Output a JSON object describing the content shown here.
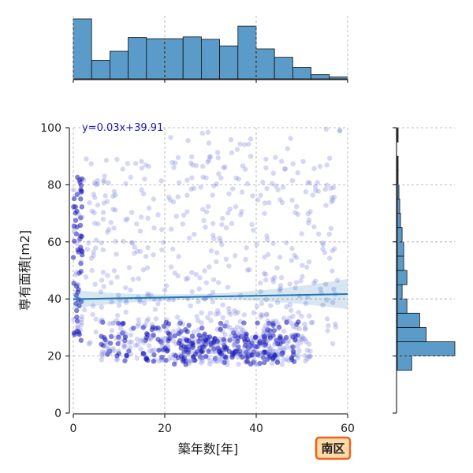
{
  "chart_data": {
    "type": "scatter",
    "title": "",
    "xlabel": "築年数[年]",
    "ylabel": "専有面積[m2]",
    "xlim": [
      0,
      60
    ],
    "ylim": [
      0,
      100
    ],
    "xticks": [
      0,
      20,
      40,
      60
    ],
    "yticks": [
      0,
      20,
      40,
      60,
      80,
      100
    ],
    "grid": true,
    "regression": {
      "label": "y=0.03x+39.91",
      "slope": 0.03,
      "intercept": 39.91
    },
    "badge": "南区",
    "colors": {
      "points": "#7b83e0",
      "points_dense": "#1a1ab8",
      "regression_line": "#1f77b4",
      "hist_fill": "#5a9bc9",
      "badge_border": "#e8641b",
      "badge_fill": "#ffd9a8",
      "equation_text": "#1a1ab0"
    },
    "top_histogram": {
      "bin_edges": [
        0,
        4,
        8,
        12,
        16,
        20,
        24,
        28,
        32,
        36,
        40,
        44,
        48,
        52,
        56,
        60
      ],
      "counts": [
        100,
        31,
        46,
        69,
        67,
        67,
        70,
        66,
        55,
        88,
        50,
        36,
        19,
        7,
        3
      ]
    },
    "right_histogram": {
      "bin_edges": [
        0,
        5,
        10,
        15,
        20,
        25,
        30,
        35,
        40,
        45,
        50,
        55,
        60,
        65,
        70,
        75,
        80,
        85,
        90,
        95,
        100
      ],
      "counts": [
        0,
        0,
        0,
        18,
        72,
        36,
        28,
        12,
        6,
        12,
        8,
        8,
        6,
        4,
        3,
        2,
        1,
        1,
        0,
        1
      ]
    }
  }
}
